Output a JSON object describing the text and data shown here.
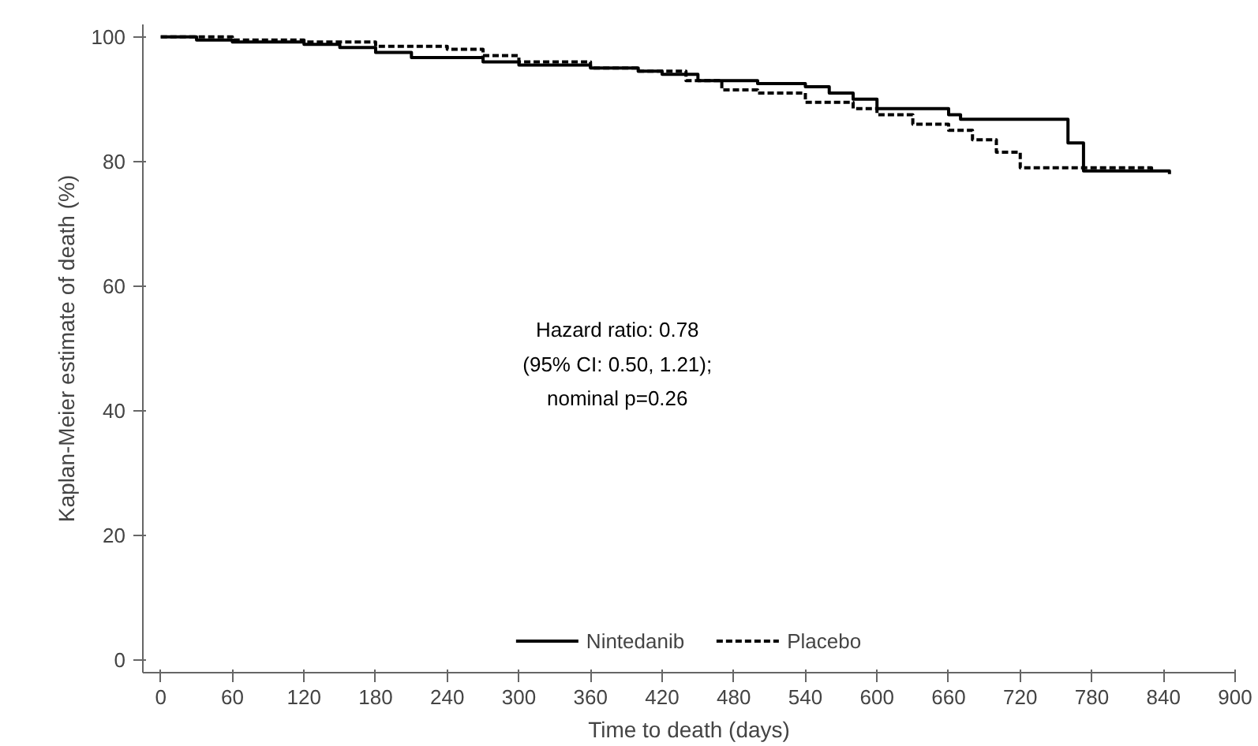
{
  "chart_data": {
    "type": "step",
    "xlabel": "Time to death (days)",
    "ylabel": "Kaplan-Meier estimate of death (%)",
    "xlim": [
      -15,
      900
    ],
    "ylim": [
      -2,
      102
    ],
    "xticks": [
      0,
      60,
      120,
      180,
      240,
      300,
      360,
      420,
      480,
      540,
      600,
      660,
      720,
      780,
      840,
      900
    ],
    "yticks": [
      0,
      20,
      40,
      60,
      80,
      100
    ],
    "grid": false,
    "legend": "bottom",
    "annotations": [
      "Hazard ratio: 0.78",
      "(95% CI: 0.50, 1.21);",
      "nominal p=0.26"
    ],
    "series": [
      {
        "name": "Nintedanib",
        "color": "#000000",
        "line_style": "solid",
        "x": [
          0,
          30,
          60,
          120,
          150,
          180,
          210,
          270,
          300,
          360,
          400,
          420,
          450,
          500,
          540,
          560,
          580,
          600,
          660,
          670,
          760,
          773,
          845
        ],
        "values": [
          100,
          99.5,
          99.2,
          98.8,
          98.3,
          97.5,
          96.7,
          96,
          95.5,
          95,
          94.5,
          94,
          93,
          92.5,
          92,
          91,
          90,
          88.5,
          87.5,
          86.8,
          83,
          78.5,
          78
        ]
      },
      {
        "name": "Placebo",
        "color": "#000000",
        "line_style": "dashed",
        "x": [
          0,
          60,
          120,
          180,
          240,
          270,
          300,
          360,
          400,
          440,
          470,
          500,
          540,
          580,
          600,
          630,
          660,
          680,
          700,
          720,
          830
        ],
        "values": [
          100,
          99.5,
          99.2,
          98.5,
          98,
          97,
          96,
          95,
          94.5,
          93,
          91.5,
          91,
          89.5,
          88.5,
          87.5,
          86,
          85,
          83.5,
          81.5,
          79,
          78.5
        ]
      }
    ]
  }
}
